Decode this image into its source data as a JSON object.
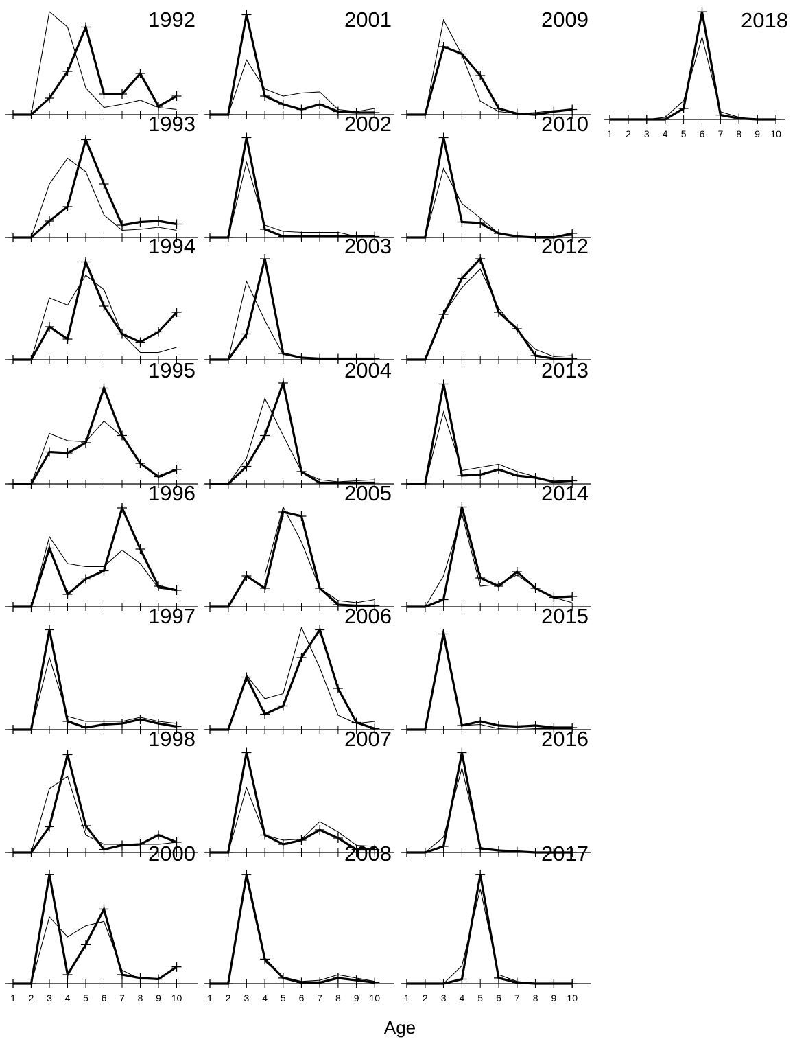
{
  "chart_data": {
    "type": "line",
    "xlabel": "Age",
    "x": [
      1,
      2,
      3,
      4,
      5,
      6,
      7,
      8,
      9,
      10
    ],
    "panels": [
      {
        "title": "1992",
        "bold": [
          0,
          0,
          0.16,
          0.42,
          0.85,
          0.2,
          0.2,
          0.4,
          0.08,
          0.18
        ],
        "thin": [
          0,
          0,
          1.0,
          0.85,
          0.26,
          0.07,
          0.1,
          0.14,
          0.07,
          0.05
        ]
      },
      {
        "title": "1993",
        "bold": [
          0,
          0,
          0.16,
          0.3,
          0.95,
          0.52,
          0.12,
          0.15,
          0.16,
          0.13
        ],
        "thin": [
          0,
          0,
          0.52,
          0.77,
          0.64,
          0.22,
          0.07,
          0.08,
          0.1,
          0.07
        ]
      },
      {
        "title": "1994",
        "bold": [
          0,
          0,
          0.32,
          0.2,
          0.95,
          0.52,
          0.25,
          0.17,
          0.27,
          0.46
        ],
        "thin": [
          0,
          0,
          0.6,
          0.53,
          0.82,
          0.68,
          0.25,
          0.07,
          0.07,
          0.12
        ]
      },
      {
        "title": "1995",
        "bold": [
          0,
          0,
          0.31,
          0.3,
          0.4,
          0.93,
          0.47,
          0.2,
          0.07,
          0.14
        ],
        "thin": [
          0,
          0,
          0.49,
          0.42,
          0.41,
          0.61,
          0.46,
          0.2,
          0.07,
          0.14
        ]
      },
      {
        "title": "1996",
        "bold": [
          0,
          0,
          0.57,
          0.12,
          0.27,
          0.35,
          0.96,
          0.56,
          0.2,
          0.16
        ],
        "thin": [
          0,
          0,
          0.68,
          0.42,
          0.39,
          0.39,
          0.55,
          0.42,
          0.18,
          0.16
        ]
      },
      {
        "title": "1997",
        "bold": [
          0,
          0,
          0.97,
          0.08,
          0.02,
          0.05,
          0.06,
          0.1,
          0.06,
          0.03
        ],
        "thin": [
          0,
          0,
          0.7,
          0.13,
          0.08,
          0.08,
          0.08,
          0.12,
          0.08,
          0.06
        ]
      },
      {
        "title": "1998",
        "bold": [
          0,
          0,
          0.25,
          0.95,
          0.26,
          0.03,
          0.07,
          0.08,
          0.17,
          0.1
        ],
        "thin": [
          0,
          0,
          0.62,
          0.74,
          0.17,
          0.08,
          0.08,
          0.08,
          0.08,
          0.1
        ]
      },
      {
        "title": "2000",
        "bold": [
          0,
          0,
          0.98,
          0.08,
          0.35,
          0.67,
          0.08,
          0.05,
          0.04,
          0.15
        ],
        "thin": [
          0,
          0,
          0.6,
          0.42,
          0.52,
          0.56,
          0.12,
          0.04,
          0.04,
          0.15
        ]
      },
      {
        "title": "2001",
        "bold": [
          0,
          0,
          0.97,
          0.18,
          0.1,
          0.05,
          0.1,
          0.03,
          0.02,
          0.02
        ],
        "thin": [
          0,
          0,
          0.53,
          0.25,
          0.18,
          0.21,
          0.22,
          0.05,
          0.03,
          0.06
        ]
      },
      {
        "title": "2002",
        "bold": [
          0,
          0,
          0.97,
          0.08,
          0.01,
          0.01,
          0.01,
          0.01,
          0.01,
          0.01
        ],
        "thin": [
          0,
          0,
          0.73,
          0.12,
          0.06,
          0.05,
          0.05,
          0.05,
          0.01,
          0.01
        ]
      },
      {
        "title": "2003",
        "bold": [
          0,
          0,
          0.25,
          0.98,
          0.06,
          0.02,
          0.01,
          0.01,
          0.01,
          0.01
        ],
        "thin": [
          0,
          0,
          0.76,
          0.38,
          0.05,
          0.02,
          0.01,
          0.01,
          0.01,
          0.01
        ]
      },
      {
        "title": "2004",
        "bold": [
          0,
          0,
          0.17,
          0.47,
          0.98,
          0.12,
          0.01,
          0.01,
          0.01,
          0.01
        ],
        "thin": [
          0,
          0,
          0.25,
          0.83,
          0.47,
          0.12,
          0.04,
          0.02,
          0.03,
          0.04
        ]
      },
      {
        "title": "2005",
        "bold": [
          0,
          0,
          0.3,
          0.18,
          0.92,
          0.88,
          0.18,
          0.02,
          0.01,
          0.01
        ],
        "thin": [
          0,
          0,
          0.31,
          0.31,
          0.97,
          0.63,
          0.18,
          0.06,
          0.04,
          0.07
        ]
      },
      {
        "title": "2006",
        "bold": [
          0,
          0,
          0.51,
          0.15,
          0.23,
          0.7,
          0.97,
          0.4,
          0.07,
          0.01
        ],
        "thin": [
          0,
          0,
          0.53,
          0.3,
          0.35,
          0.99,
          0.6,
          0.14,
          0.06,
          0.08
        ]
      },
      {
        "title": "2007",
        "bold": [
          0,
          0,
          0.97,
          0.17,
          0.08,
          0.12,
          0.22,
          0.14,
          0.03,
          0.03
        ],
        "thin": [
          0,
          0,
          0.63,
          0.17,
          0.12,
          0.13,
          0.3,
          0.2,
          0.07,
          0.06
        ]
      },
      {
        "title": "2008",
        "bold": [
          0,
          0,
          0.98,
          0.22,
          0.05,
          0.01,
          0.01,
          0.05,
          0.03,
          0.01
        ],
        "thin": [
          0,
          0,
          0.94,
          0.2,
          0.06,
          0.02,
          0.03,
          0.08,
          0.05,
          0.02
        ]
      },
      {
        "title": "2009",
        "bold": [
          0,
          0,
          0.66,
          0.59,
          0.38,
          0.06,
          0.01,
          0.0,
          0.03,
          0.05
        ],
        "thin": [
          0,
          0,
          0.92,
          0.58,
          0.13,
          0.03,
          0.01,
          0.02,
          0.04,
          0.05
        ]
      },
      {
        "title": "2010",
        "bold": [
          0,
          0,
          0.97,
          0.15,
          0.14,
          0.04,
          0.01,
          0.0,
          0.0,
          0.04
        ],
        "thin": [
          0,
          0,
          0.67,
          0.33,
          0.19,
          0.04,
          0.01,
          0.01,
          0.01,
          0.02
        ]
      },
      {
        "title": "2012",
        "bold": [
          0,
          0,
          0.44,
          0.79,
          0.98,
          0.46,
          0.3,
          0.04,
          0.01,
          0.01
        ],
        "thin": [
          0,
          0,
          0.44,
          0.7,
          0.88,
          0.5,
          0.28,
          0.1,
          0.03,
          0.04
        ]
      },
      {
        "title": "2013",
        "bold": [
          0,
          0,
          0.97,
          0.08,
          0.09,
          0.14,
          0.08,
          0.06,
          0.02,
          0.03
        ],
        "thin": [
          0,
          0,
          0.7,
          0.13,
          0.16,
          0.19,
          0.12,
          0.07,
          0.01,
          0.01
        ]
      },
      {
        "title": "2014",
        "bold": [
          0,
          0,
          0.07,
          0.97,
          0.28,
          0.2,
          0.34,
          0.18,
          0.09,
          0.1
        ],
        "thin": [
          0,
          0,
          0.3,
          0.9,
          0.2,
          0.22,
          0.31,
          0.18,
          0.09,
          0.04
        ]
      },
      {
        "title": "2015",
        "bold": [
          0,
          0,
          0.93,
          0.04,
          0.08,
          0.04,
          0.03,
          0.04,
          0.02,
          0.02
        ],
        "thin": [
          0,
          0,
          0.98,
          0.04,
          0.05,
          0.01,
          0.02,
          0.01,
          0.01,
          0.01
        ]
      },
      {
        "title": "2016",
        "bold": [
          0,
          0,
          0.06,
          0.97,
          0.04,
          0.02,
          0.01,
          0.0,
          0.0,
          0.0
        ],
        "thin": [
          0,
          0,
          0.15,
          0.82,
          0.05,
          0.02,
          0.01,
          0.0,
          0.0,
          0.0
        ]
      },
      {
        "title": "2017",
        "bold": [
          0,
          0,
          0,
          0.04,
          0.98,
          0.05,
          0.01,
          0.0,
          0.0,
          0.0
        ],
        "thin": [
          0,
          0,
          0,
          0.16,
          0.85,
          0.08,
          0.02,
          0.0,
          0.0,
          0.0
        ]
      },
      {
        "title": "2018",
        "bold": [
          0,
          0,
          0,
          0.0,
          0.1,
          0.98,
          0.04,
          0.01,
          0.0,
          0.0
        ],
        "thin": [
          0,
          0,
          0,
          0.02,
          0.17,
          0.75,
          0.07,
          0.02,
          0.0,
          0.0
        ]
      }
    ]
  }
}
